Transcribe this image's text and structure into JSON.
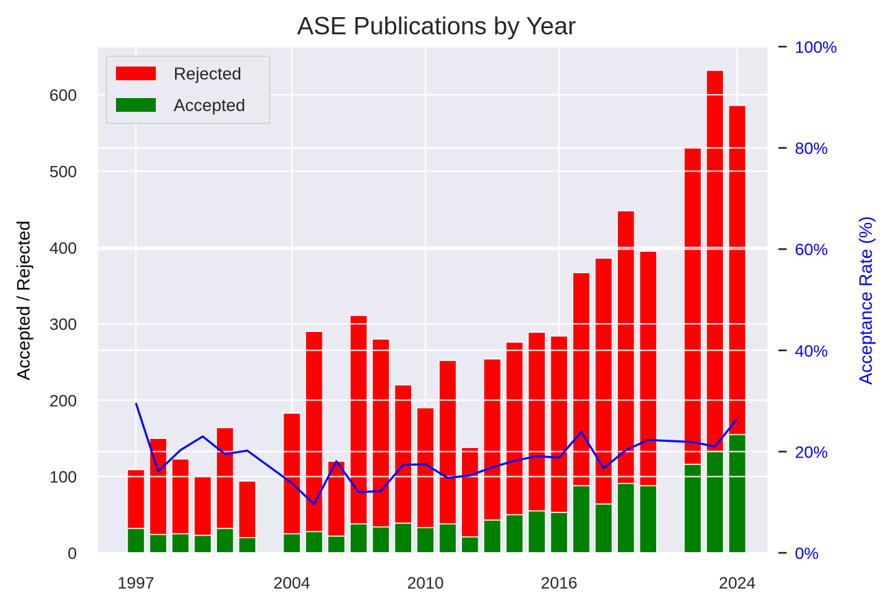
{
  "chart_data": {
    "type": "bar",
    "title": "ASE Publications by Year",
    "ylabel": "Accepted / Rejected",
    "y2label": "Acceptance Rate (%)",
    "x_tick_labels": [
      "1997",
      "2004",
      "2010",
      "2016",
      "2024"
    ],
    "y_ticks": [
      "0",
      "100",
      "200",
      "300",
      "400",
      "500",
      "600"
    ],
    "y2_ticks": [
      "0%",
      "20%",
      "40%",
      "60%",
      "80%",
      "100%"
    ],
    "ylim": [
      0,
      663
    ],
    "y2lim": [
      0,
      100
    ],
    "xlim": [
      1992.9,
      1022.2
    ],
    "stacked": true,
    "legend_position": "top-left",
    "colors": {
      "rejected": "#ff0000",
      "accepted": "#008000",
      "rate": "#0000ff",
      "background": "#eaeaf2",
      "grid": "#ffffff"
    },
    "series": [
      {
        "name": "Rejected",
        "color": "#ff0000",
        "values": [
          77,
          126,
          98,
          77,
          132,
          74,
          158,
          262,
          98,
          273,
          246,
          181,
          157,
          214,
          117,
          211,
          226,
          234,
          231,
          279,
          322,
          357,
          307,
          415,
          499,
          431
        ]
      },
      {
        "name": "Accepted",
        "color": "#008000",
        "values": [
          32,
          24,
          25,
          23,
          32,
          20,
          25,
          28,
          22,
          38,
          34,
          39,
          33,
          38,
          21,
          43,
          50,
          55,
          53,
          88,
          64,
          91,
          88,
          116,
          133,
          155
        ]
      }
    ],
    "years": [
      1997,
      1998,
      1999,
      2000,
      2001,
      2002,
      2004,
      2005,
      2006,
      2007,
      2008,
      2009,
      2010,
      2011,
      2012,
      2013,
      2014,
      2015,
      2016,
      2017,
      2018,
      2019,
      2020,
      2022,
      2023,
      2024
    ],
    "acceptance_rate": {
      "name": "Acceptance Rate",
      "x": [
        1997,
        1998,
        1999,
        2000,
        2001,
        2002,
        2004,
        2005,
        2006,
        2007,
        2008,
        2009,
        2010,
        2011,
        2012,
        2013,
        2014,
        2015,
        2016,
        2017,
        2018,
        2019,
        2020,
        2022,
        2023,
        2024
      ],
      "values": [
        29.6,
        16.1,
        20.3,
        23.0,
        19.5,
        20.2,
        13.8,
        9.6,
        18.1,
        12.0,
        12.2,
        17.4,
        17.5,
        14.8,
        15.3,
        16.9,
        18.2,
        19.1,
        18.8,
        23.9,
        16.7,
        20.3,
        22.3,
        21.9,
        21.0,
        26.5
      ]
    }
  }
}
